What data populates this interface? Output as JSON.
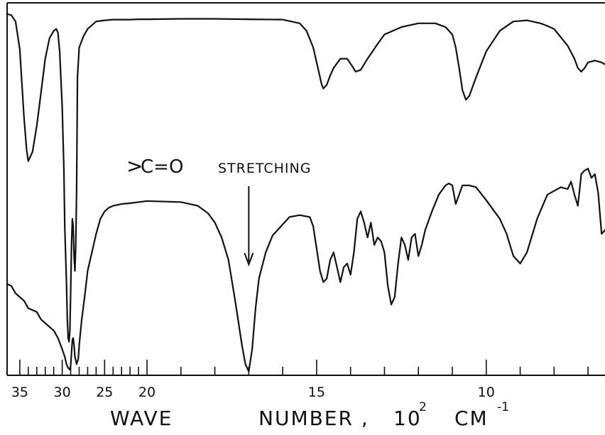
{
  "chart_data": {
    "type": "line",
    "title": "",
    "xlabel": {
      "word1": "WAVE",
      "word2": "NUMBER ,",
      "unit_base": "10",
      "unit_exp": "2",
      "unit_word": "CM",
      "unit_word_exp": "-1"
    },
    "ylabel": "",
    "x_axis": {
      "reversed": true,
      "scale": "piecewise (compressed above 2000 cm-1)",
      "xlim": [
        36.5,
        6.5
      ],
      "tick_labels": [
        {
          "value": 35,
          "label": "35"
        },
        {
          "value": 30,
          "label": "30"
        },
        {
          "value": 25,
          "label": "25"
        },
        {
          "value": 20,
          "label": "20"
        },
        {
          "value": 15,
          "label": "15"
        },
        {
          "value": 10,
          "label": "10"
        }
      ],
      "minor_ticks": [
        34,
        33,
        32,
        31,
        29,
        28,
        27,
        26,
        24,
        23,
        22,
        21,
        19,
        18,
        17,
        16,
        14,
        13,
        12,
        11,
        9,
        8,
        7
      ]
    },
    "grid": false,
    "annotations": [
      {
        "text_symbol": ">",
        "text_rest": "C=O",
        "text_label": "STRETCHING",
        "points_to_x": 17.0
      }
    ],
    "series": [
      {
        "x": [
          36.5,
          36.0,
          35.5,
          35.0,
          34.8,
          34.5,
          34.2,
          34.0,
          33.5,
          33.0,
          32.5,
          32.0,
          31.5,
          31.0,
          30.7,
          30.5,
          30.3,
          30.0,
          29.8,
          29.7,
          29.5,
          29.4,
          29.3,
          29.2,
          29.1,
          29.0,
          28.9,
          28.8,
          28.7,
          28.6,
          28.5,
          28.4,
          28.3,
          28.2,
          28.0,
          27.5,
          27.0,
          26.0,
          25.0,
          24.0,
          23.0,
          22.0,
          21.0,
          20.0,
          19.0,
          18.0,
          17.0,
          16.0,
          15.5,
          15.3,
          15.1,
          14.95,
          14.85,
          14.8,
          14.7,
          14.6,
          14.5,
          14.3,
          14.1,
          13.95,
          13.85,
          13.7,
          13.5,
          13.2,
          13.0,
          12.5,
          12.0,
          11.5,
          11.2,
          11.0,
          10.9,
          10.8,
          10.7,
          10.6,
          10.5,
          10.3,
          10.0,
          9.6,
          9.2,
          8.8,
          8.4,
          8.2,
          8.0,
          7.6,
          7.4,
          7.3,
          7.2,
          7.1,
          7.0,
          6.8,
          6.6,
          6.5
        ],
        "y": [
          97.0,
          96.7,
          95.0,
          87.5,
          80.0,
          69.0,
          60.5,
          57.5,
          60.0,
          67.0,
          76.0,
          85.0,
          90.5,
          92.5,
          93.0,
          92.0,
          87.0,
          72.0,
          55.0,
          40.0,
          25.0,
          15.0,
          10.0,
          9.0,
          12.0,
          22.0,
          35.0,
          42.0,
          40.0,
          32.0,
          28.0,
          35.0,
          50.0,
          80.0,
          88.0,
          91.0,
          93.0,
          95.0,
          95.3,
          95.5,
          95.5,
          95.5,
          95.6,
          95.6,
          95.7,
          95.7,
          95.6,
          95.5,
          94.5,
          92.5,
          88.0,
          82.0,
          78.0,
          77.0,
          78.0,
          80.5,
          82.5,
          85.0,
          85.0,
          83.0,
          81.5,
          82.0,
          85.0,
          89.0,
          91.5,
          93.5,
          94.5,
          94.5,
          93.5,
          91.5,
          88.0,
          82.5,
          76.5,
          74.0,
          75.0,
          80.0,
          87.0,
          92.5,
          95.0,
          95.3,
          94.5,
          93.8,
          93.0,
          88.5,
          85.0,
          82.5,
          81.5,
          82.5,
          84.0,
          84.5,
          84.0,
          83.5
        ]
      },
      {
        "x": [
          36.5,
          36.0,
          35.5,
          35.0,
          34.5,
          34.0,
          33.5,
          33.0,
          32.5,
          32.0,
          31.5,
          31.0,
          30.5,
          30.0,
          29.7,
          29.5,
          29.3,
          29.1,
          29.0,
          28.9,
          28.8,
          28.7,
          28.6,
          28.5,
          28.3,
          28.1,
          28.0,
          27.7,
          27.3,
          27.0,
          26.5,
          26.0,
          25.5,
          25.0,
          24.5,
          24.0,
          23.0,
          22.0,
          21.0,
          20.0,
          19.0,
          18.5,
          18.2,
          18.0,
          17.8,
          17.6,
          17.4,
          17.2,
          17.1,
          17.0,
          16.9,
          16.8,
          16.7,
          16.5,
          16.3,
          16.0,
          15.8,
          15.5,
          15.2,
          15.1,
          15.0,
          14.9,
          14.8,
          14.7,
          14.6,
          14.5,
          14.4,
          14.3,
          14.2,
          14.1,
          14.0,
          13.9,
          13.8,
          13.7,
          13.6,
          13.5,
          13.4,
          13.3,
          13.2,
          13.1,
          13.0,
          12.9,
          12.8,
          12.7,
          12.6,
          12.5,
          12.4,
          12.3,
          12.2,
          12.1,
          12.0,
          11.9,
          11.8,
          11.6,
          11.4,
          11.2,
          11.1,
          11.0,
          10.9,
          10.7,
          10.5,
          10.3,
          10.0,
          9.8,
          9.6,
          9.4,
          9.2,
          9.0,
          8.8,
          8.5,
          8.2,
          8.0,
          7.8,
          7.6,
          7.5,
          7.4,
          7.3,
          7.2,
          7.1,
          7.0,
          6.9,
          6.8,
          6.7,
          6.6,
          6.5
        ],
        "y": [
          24.5,
          24.0,
          22.0,
          21.0,
          20.0,
          18.0,
          17.5,
          17.0,
          15.0,
          14.0,
          13.0,
          12.0,
          10.0,
          7.0,
          5.0,
          3.0,
          2.0,
          1.5,
          2.5,
          6.0,
          9.5,
          10.0,
          8.0,
          5.0,
          3.0,
          4.5,
          8.0,
          15.0,
          22.0,
          28.0,
          33.0,
          38.0,
          42.0,
          44.0,
          45.0,
          45.5,
          46.0,
          46.2,
          46.5,
          46.8,
          46.5,
          45.5,
          43.5,
          41.0,
          37.0,
          31.0,
          20.0,
          8.0,
          3.0,
          1.0,
          7.0,
          18.0,
          26.0,
          33.0,
          37.5,
          40.5,
          42.5,
          43.0,
          42.5,
          40.0,
          34.0,
          28.0,
          25.0,
          26.0,
          31.0,
          33.0,
          29.0,
          25.0,
          29.0,
          30.0,
          27.0,
          33.0,
          42.0,
          44.0,
          41.0,
          37.0,
          41.0,
          35.0,
          37.0,
          36.0,
          33.0,
          24.0,
          19.0,
          21.0,
          30.0,
          37.0,
          35.0,
          31.0,
          37.0,
          38.0,
          32.0,
          35.0,
          39.0,
          44.0,
          48.5,
          51.0,
          51.5,
          51.0,
          46.0,
          51.0,
          51.0,
          50.5,
          47.0,
          44.5,
          42.0,
          38.0,
          32.0,
          30.0,
          33.0,
          42.0,
          48.5,
          49.5,
          50.5,
          50.0,
          52.0,
          48.5,
          45.5,
          54.0,
          55.0,
          55.5,
          53.0,
          54.0,
          49.0,
          38.0,
          39.0
        ]
      }
    ]
  }
}
